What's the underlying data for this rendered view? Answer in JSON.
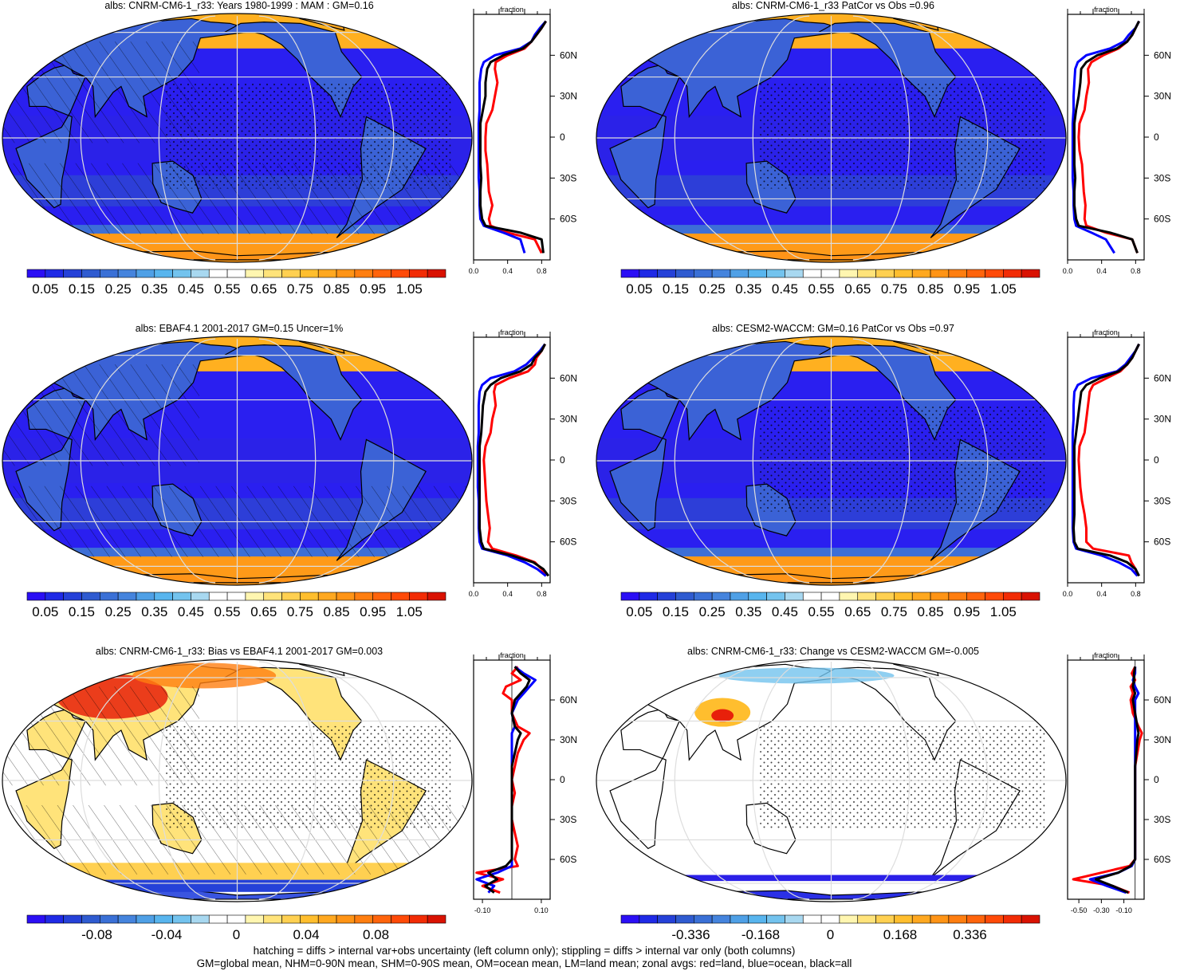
{
  "panels": [
    {
      "title": "albs: CNRM-CM6-1_r33: Years 1980-1999 : MAM : GM=0.16",
      "kind": "clim",
      "hatch": true,
      "stipple": true,
      "profile": {
        "xlim": [
          0.0,
          0.9
        ],
        "ticks": [
          "0.0",
          "0.4",
          "0.8"
        ],
        "tickvals": [
          0.0,
          0.4,
          0.8
        ]
      },
      "colorbar": "abs"
    },
    {
      "title": "albs: CNRM-CM6-1_r33 PatCor vs Obs =0.96",
      "kind": "clim",
      "hatch": false,
      "stipple": true,
      "profile": {
        "xlim": [
          0.0,
          0.9
        ],
        "ticks": [
          "0.0",
          "0.4",
          "0.8"
        ],
        "tickvals": [
          0.0,
          0.4,
          0.8
        ]
      },
      "colorbar": "abs"
    },
    {
      "title": "albs: EBAF4.1 2001-2017 GM=0.15 Uncer=1%",
      "kind": "clim",
      "hatch": true,
      "stipple": false,
      "profile": {
        "xlim": [
          0.0,
          0.9
        ],
        "ticks": [
          "0.0",
          "0.4",
          "0.8"
        ],
        "tickvals": [
          0.0,
          0.4,
          0.8
        ]
      },
      "colorbar": "abs"
    },
    {
      "title": "albs: CESM2-WACCM: GM=0.16 PatCor vs Obs =0.97",
      "kind": "clim",
      "hatch": false,
      "stipple": true,
      "profile": {
        "xlim": [
          0.0,
          0.9
        ],
        "ticks": [
          "0.0",
          "0.4",
          "0.8"
        ],
        "tickvals": [
          0.0,
          0.4,
          0.8
        ]
      },
      "colorbar": "abs"
    },
    {
      "title": "albs: CNRM-CM6-1_r33: Bias vs EBAF4.1 2001-2017 GM=0.003",
      "kind": "bias",
      "hatch": true,
      "stipple": true,
      "profile": {
        "xlim": [
          -0.13,
          0.13
        ],
        "ticks": [
          "-0.10",
          "0.10"
        ],
        "tickvals": [
          -0.1,
          0.1
        ]
      },
      "colorbar": "bias"
    },
    {
      "title": "albs: CNRM-CM6-1_r33: Change vs CESM2-WACCM GM=-0.005",
      "kind": "change",
      "hatch": false,
      "stipple": true,
      "profile": {
        "xlim": [
          -0.6,
          0.08
        ],
        "ticks": [
          "-0.50",
          "-0.30",
          "-0.10"
        ],
        "tickvals": [
          -0.5,
          -0.3,
          -0.1
        ]
      },
      "colorbar": "change"
    }
  ],
  "profile_axis": {
    "label": "fraction",
    "lat_ticks": [
      "60N",
      "30N",
      "0",
      "30S",
      "60S"
    ],
    "lat_vals": [
      60,
      30,
      0,
      -30,
      -60
    ]
  },
  "profile_legend": {
    "land": "#ff0000",
    "ocean": "#0000ff",
    "all": "#000000"
  },
  "colorbars": {
    "abs": {
      "labels": [
        "0.05",
        "0.15",
        "0.25",
        "0.35",
        "0.45",
        "0.55",
        "0.65",
        "0.75",
        "0.85",
        "0.95",
        "1.05"
      ],
      "colors": [
        "#2b0ff5",
        "#1f2ae6",
        "#2541d8",
        "#2f5bd0",
        "#3a70d6",
        "#4584dd",
        "#4fa0e6",
        "#58b5ee",
        "#73c3ee",
        "#a8d8f0",
        "#ffffff",
        "#ffffff",
        "#fff6b0",
        "#ffe37a",
        "#ffd051",
        "#ffbe2e",
        "#ffa820",
        "#ff9416",
        "#ff7e10",
        "#ff640c",
        "#ff4a08",
        "#f22c05",
        "#d91202"
      ]
    },
    "bias": {
      "labels": [
        "-0.08",
        "-0.04",
        "0",
        "0.04",
        "0.08"
      ],
      "colors": [
        "#2b0ff5",
        "#1f2ae6",
        "#2541d8",
        "#2f5bd0",
        "#3a70d6",
        "#4584dd",
        "#4fa0e6",
        "#58b5ee",
        "#73c3ee",
        "#a8d8f0",
        "#ffffff",
        "#ffffff",
        "#fff6b0",
        "#ffe37a",
        "#ffd051",
        "#ffbe2e",
        "#ffa820",
        "#ff9416",
        "#ff7e10",
        "#ff640c",
        "#ff4a08",
        "#f22c05",
        "#d91202"
      ]
    },
    "change": {
      "labels": [
        "-0.336",
        "-0.168",
        "0",
        "0.168",
        "0.336"
      ],
      "colors": [
        "#2b0ff5",
        "#1f2ae6",
        "#2541d8",
        "#2f5bd0",
        "#3a70d6",
        "#4584dd",
        "#4fa0e6",
        "#58b5ee",
        "#73c3ee",
        "#a8d8f0",
        "#ffffff",
        "#ffffff",
        "#fff6b0",
        "#ffe37a",
        "#ffd051",
        "#ffbe2e",
        "#ffa820",
        "#ff9416",
        "#ff7e10",
        "#ff640c",
        "#ff4a08",
        "#f22c05",
        "#d91202"
      ]
    }
  },
  "footer": {
    "line1": "hatching = diffs > internal var+obs uncertainty (left column only); stippling = diffs > internal var only (both columns)",
    "line2": "GM=global mean, NHM=0-90N mean, SHM=0-90S mean, OM=ocean mean, LM=land mean; zonal avgs: red=land, blue=ocean, black=all"
  },
  "chart_data": [
    {
      "type": "line",
      "title": "albs: CNRM-CM6-1_r33: Years 1980-1999 : MAM : GM=0.16",
      "xlabel": "fraction",
      "ylabel": "",
      "xlim": [
        0.0,
        0.9
      ],
      "ylim": [
        -90,
        90
      ],
      "y": [
        -85,
        -75,
        -70,
        -65,
        -60,
        -50,
        -40,
        -30,
        -20,
        -10,
        0,
        10,
        20,
        30,
        40,
        50,
        55,
        60,
        65,
        70,
        75,
        80,
        85
      ],
      "series": [
        {
          "name": "red=land",
          "values": [
            0.8,
            0.72,
            0.4,
            0.2,
            0.18,
            0.22,
            0.18,
            0.17,
            0.16,
            0.14,
            0.14,
            0.15,
            0.22,
            0.25,
            0.28,
            0.25,
            0.26,
            0.4,
            0.6,
            0.68,
            0.74,
            0.8,
            0.85
          ]
        },
        {
          "name": "blue=ocean",
          "values": [
            0.6,
            0.55,
            0.35,
            0.12,
            0.08,
            0.07,
            0.07,
            0.06,
            0.06,
            0.06,
            0.06,
            0.06,
            0.07,
            0.07,
            0.07,
            0.09,
            0.12,
            0.25,
            0.55,
            0.68,
            0.72,
            0.78,
            0.85
          ]
        },
        {
          "name": "black=all",
          "values": [
            0.82,
            0.8,
            0.55,
            0.14,
            0.1,
            0.08,
            0.08,
            0.09,
            0.08,
            0.08,
            0.08,
            0.08,
            0.11,
            0.14,
            0.14,
            0.16,
            0.2,
            0.35,
            0.58,
            0.68,
            0.74,
            0.8,
            0.85
          ]
        }
      ]
    },
    {
      "type": "line",
      "title": "albs: CNRM-CM6-1_r33 PatCor vs Obs =0.96",
      "xlabel": "fraction",
      "ylabel": "",
      "xlim": [
        0.0,
        0.9
      ],
      "ylim": [
        -90,
        90
      ],
      "y": [
        -85,
        -75,
        -70,
        -65,
        -60,
        -50,
        -40,
        -30,
        -20,
        -10,
        0,
        10,
        20,
        30,
        40,
        50,
        55,
        60,
        65,
        70,
        75,
        80,
        85
      ],
      "series": [
        {
          "name": "red=land",
          "values": [
            0.82,
            0.76,
            0.45,
            0.22,
            0.2,
            0.21,
            0.19,
            0.18,
            0.17,
            0.14,
            0.13,
            0.14,
            0.2,
            0.22,
            0.25,
            0.24,
            0.28,
            0.42,
            0.6,
            0.7,
            0.76,
            0.8,
            0.84
          ]
        },
        {
          "name": "blue=ocean",
          "values": [
            0.55,
            0.45,
            0.28,
            0.1,
            0.08,
            0.07,
            0.07,
            0.06,
            0.06,
            0.06,
            0.06,
            0.06,
            0.07,
            0.07,
            0.08,
            0.09,
            0.12,
            0.22,
            0.5,
            0.66,
            0.72,
            0.8,
            0.84
          ]
        },
        {
          "name": "black=all",
          "values": [
            0.82,
            0.76,
            0.5,
            0.13,
            0.1,
            0.08,
            0.08,
            0.09,
            0.08,
            0.08,
            0.08,
            0.08,
            0.1,
            0.13,
            0.15,
            0.16,
            0.22,
            0.35,
            0.58,
            0.7,
            0.76,
            0.8,
            0.84
          ]
        }
      ]
    },
    {
      "type": "line",
      "title": "albs: EBAF4.1 2001-2017 GM=0.15 Uncer=1%",
      "xlabel": "fraction",
      "ylabel": "",
      "xlim": [
        0.0,
        0.9
      ],
      "ylim": [
        -90,
        90
      ],
      "y": [
        -85,
        -80,
        -75,
        -70,
        -65,
        -60,
        -50,
        -40,
        -30,
        -20,
        -10,
        0,
        10,
        20,
        30,
        40,
        50,
        55,
        60,
        65,
        70,
        75,
        80,
        85
      ],
      "series": [
        {
          "name": "red=land",
          "values": [
            0.85,
            0.8,
            0.72,
            0.5,
            0.22,
            0.17,
            0.19,
            0.17,
            0.15,
            0.14,
            0.13,
            0.12,
            0.14,
            0.2,
            0.22,
            0.26,
            0.24,
            0.26,
            0.42,
            0.64,
            0.72,
            0.74,
            0.8,
            0.84
          ]
        },
        {
          "name": "blue=ocean",
          "values": [
            0.85,
            0.75,
            0.6,
            0.4,
            0.1,
            0.07,
            0.06,
            0.06,
            0.06,
            0.05,
            0.05,
            0.05,
            0.05,
            0.06,
            0.06,
            0.06,
            0.07,
            0.1,
            0.2,
            0.48,
            0.62,
            0.7,
            0.78,
            0.84
          ]
        },
        {
          "name": "black=all",
          "values": [
            0.88,
            0.82,
            0.7,
            0.45,
            0.12,
            0.09,
            0.07,
            0.07,
            0.07,
            0.07,
            0.07,
            0.07,
            0.07,
            0.09,
            0.1,
            0.11,
            0.14,
            0.2,
            0.32,
            0.55,
            0.68,
            0.72,
            0.8,
            0.84
          ]
        }
      ]
    },
    {
      "type": "line",
      "title": "albs: CESM2-WACCM: GM=0.16 PatCor vs Obs =0.97",
      "xlabel": "fraction",
      "ylabel": "",
      "xlim": [
        0.0,
        0.9
      ],
      "ylim": [
        -90,
        90
      ],
      "y": [
        -85,
        -80,
        -75,
        -70,
        -65,
        -60,
        -50,
        -40,
        -30,
        -20,
        -10,
        0,
        10,
        20,
        30,
        40,
        50,
        55,
        60,
        65,
        70,
        75,
        80,
        85
      ],
      "series": [
        {
          "name": "red=land",
          "values": [
            0.82,
            0.8,
            0.75,
            0.72,
            0.3,
            0.22,
            0.22,
            0.2,
            0.17,
            0.15,
            0.14,
            0.13,
            0.14,
            0.2,
            0.22,
            0.24,
            0.26,
            0.3,
            0.46,
            0.62,
            0.7,
            0.76,
            0.8,
            0.84
          ]
        },
        {
          "name": "blue=ocean",
          "values": [
            0.82,
            0.75,
            0.6,
            0.4,
            0.1,
            0.07,
            0.06,
            0.06,
            0.06,
            0.06,
            0.06,
            0.06,
            0.06,
            0.06,
            0.07,
            0.07,
            0.08,
            0.12,
            0.28,
            0.58,
            0.68,
            0.74,
            0.8,
            0.84
          ]
        },
        {
          "name": "black=all",
          "values": [
            0.84,
            0.8,
            0.7,
            0.5,
            0.12,
            0.08,
            0.07,
            0.08,
            0.08,
            0.08,
            0.08,
            0.08,
            0.08,
            0.1,
            0.12,
            0.14,
            0.16,
            0.22,
            0.38,
            0.6,
            0.7,
            0.76,
            0.8,
            0.84
          ]
        }
      ]
    },
    {
      "type": "line",
      "title": "albs: CNRM-CM6-1_r33: Bias vs EBAF4.1 2001-2017 GM=0.003",
      "xlabel": "fraction",
      "ylabel": "",
      "xlim": [
        -0.13,
        0.13
      ],
      "ylim": [
        -90,
        90
      ],
      "y": [
        -85,
        -80,
        -75,
        -70,
        -65,
        -60,
        -50,
        -40,
        -30,
        -20,
        -10,
        0,
        10,
        20,
        30,
        35,
        40,
        50,
        60,
        65,
        70,
        75,
        80,
        85
      ],
      "series": [
        {
          "name": "red=land",
          "values": [
            -0.04,
            -0.1,
            -0.03,
            -0.12,
            0.02,
            0.01,
            0.02,
            0.01,
            0.0,
            0.0,
            0.01,
            0.0,
            0.01,
            0.02,
            0.04,
            0.06,
            0.02,
            0.0,
            0.0,
            -0.03,
            -0.02,
            0.03,
            0.0,
            0.02
          ]
        },
        {
          "name": "blue=ocean",
          "values": [
            -0.08,
            -0.06,
            -0.12,
            -0.05,
            0.0,
            0.0,
            0.0,
            0.0,
            0.0,
            0.0,
            0.0,
            0.0,
            0.0,
            0.0,
            0.0,
            0.0,
            0.01,
            0.0,
            0.02,
            0.04,
            0.06,
            0.08,
            0.04,
            0.01
          ]
        },
        {
          "name": "black=all",
          "values": [
            -0.06,
            -0.09,
            -0.05,
            -0.08,
            -0.02,
            0.0,
            0.0,
            0.0,
            0.0,
            0.0,
            0.0,
            0.0,
            0.0,
            0.01,
            0.02,
            0.03,
            0.01,
            0.0,
            0.01,
            0.03,
            0.05,
            0.06,
            0.03,
            0.01
          ]
        }
      ]
    },
    {
      "type": "line",
      "title": "albs: CNRM-CM6-1_r33: Change vs CESM2-WACCM GM=-0.005",
      "xlabel": "fraction",
      "ylabel": "",
      "xlim": [
        -0.6,
        0.08
      ],
      "ylim": [
        -90,
        90
      ],
      "y": [
        -85,
        -80,
        -75,
        -70,
        -65,
        -60,
        -50,
        -40,
        -30,
        -20,
        -10,
        0,
        10,
        20,
        30,
        35,
        40,
        50,
        60,
        65,
        70,
        75,
        80,
        85
      ],
      "series": [
        {
          "name": "red=land",
          "values": [
            -0.05,
            -0.2,
            -0.55,
            -0.3,
            -0.05,
            0.0,
            0.0,
            0.0,
            0.0,
            0.0,
            0.0,
            0.0,
            0.0,
            0.02,
            0.04,
            0.06,
            0.03,
            -0.02,
            -0.04,
            -0.02,
            -0.04,
            0.0,
            -0.03,
            0.0
          ]
        },
        {
          "name": "blue=ocean",
          "values": [
            -0.08,
            -0.25,
            -0.4,
            -0.15,
            -0.03,
            0.0,
            0.0,
            0.0,
            0.0,
            0.0,
            0.0,
            0.0,
            0.0,
            0.0,
            0.0,
            0.0,
            0.0,
            0.0,
            0.0,
            0.03,
            0.0,
            -0.02,
            0.0,
            0.0
          ]
        },
        {
          "name": "black=all",
          "values": [
            -0.06,
            -0.2,
            -0.35,
            -0.15,
            -0.04,
            0.0,
            0.0,
            0.0,
            0.0,
            0.0,
            0.0,
            0.0,
            0.0,
            0.01,
            0.02,
            0.03,
            0.02,
            0.0,
            -0.02,
            0.0,
            -0.02,
            -0.01,
            -0.01,
            0.0
          ]
        }
      ]
    }
  ]
}
